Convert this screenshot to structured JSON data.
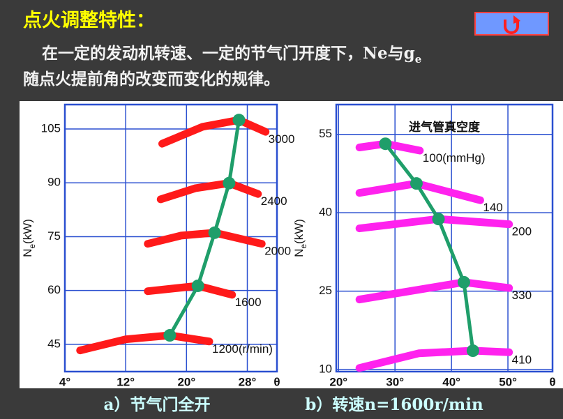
{
  "header": {
    "title": "点火调整特性：",
    "line1": [
      "在一定的发动机转速、一定的节气门开度下，Ne与g",
      "e"
    ],
    "line2": "随点火提前角的改变而变化的规律。"
  },
  "chart_data": [
    {
      "type": "line",
      "y_label": {
        "main": "N",
        "sub": "e",
        "unit": "(kW)"
      },
      "x_label": "θ",
      "xlim": [
        4,
        31.9
      ],
      "ylim": [
        37.4,
        111.8
      ],
      "xticks": [
        {
          "value": 4,
          "label": "4°"
        },
        {
          "value": 12,
          "label": "12°"
        },
        {
          "value": 20,
          "label": "20°"
        },
        {
          "value": 28,
          "label": "28°"
        }
      ],
      "yticks": [
        45,
        60,
        75,
        90,
        105
      ],
      "grid": true,
      "series": [
        {
          "name": "3000",
          "color": "#ff1a1a",
          "x": [
            16.8,
            22.1,
            26.9,
            30.4
          ],
          "values": [
            100.9,
            105.6,
            107.5,
            104.2
          ]
        },
        {
          "name": "2400",
          "color": "#ff1a1a",
          "x": [
            16.6,
            21.2,
            25.6,
            29.4
          ],
          "values": [
            85.4,
            88.5,
            89.9,
            86.9
          ]
        },
        {
          "name": "2000",
          "color": "#ff1a1a",
          "x": [
            14.9,
            19.3,
            23.7,
            29.9
          ],
          "values": [
            73.0,
            75.3,
            76.1,
            73.0
          ]
        },
        {
          "name": "1600",
          "color": "#ff1a1a",
          "x": [
            14.9,
            21.5,
            26.0
          ],
          "values": [
            59.8,
            61.3,
            58.8
          ]
        },
        {
          "name": "1200(r/min)",
          "color": "#ff1a1a",
          "x": [
            6.0,
            12.0,
            17.8,
            23.0
          ],
          "values": [
            43.3,
            46.4,
            47.5,
            45.8
          ]
        },
        {
          "color": "#1f9e6a",
          "markers": true,
          "x": [
            17.8,
            21.5,
            23.7,
            25.6,
            26.9
          ],
          "values": [
            47.5,
            61.3,
            76.1,
            89.9,
            107.5
          ]
        }
      ]
    },
    {
      "type": "line",
      "y_label": {
        "main": "N",
        "sub": "e",
        "unit": "(kW)"
      },
      "x_label": "θ",
      "legend_title": "进气管真空度",
      "xlim": [
        19.6,
        57.9
      ],
      "ylim": [
        9.6,
        60.7
      ],
      "xticks": [
        {
          "value": 20,
          "label": "20°"
        },
        {
          "value": 30,
          "label": "30°"
        },
        {
          "value": 40,
          "label": "40°"
        },
        {
          "value": 50,
          "label": "50°"
        }
      ],
      "yticks": [
        10,
        25,
        40,
        55
      ],
      "grid": true,
      "series": [
        {
          "name": "100(mmHg)",
          "color": "#ff22ee",
          "x": [
            23.7,
            28.3,
            34.4
          ],
          "values": [
            52.5,
            53.2,
            51.9
          ]
        },
        {
          "name": "140",
          "color": "#ff22ee",
          "x": [
            23.7,
            33.8,
            45.1
          ],
          "values": [
            43.8,
            45.6,
            42.4
          ]
        },
        {
          "name": "200",
          "color": "#ff22ee",
          "x": [
            23.7,
            37.7,
            50.2
          ],
          "values": [
            37.0,
            38.8,
            37.8
          ]
        },
        {
          "name": "330",
          "color": "#ff22ee",
          "x": [
            23.7,
            42.2,
            50.2
          ],
          "values": [
            23.4,
            26.7,
            25.6
          ]
        },
        {
          "name": "410",
          "color": "#ff22ee",
          "x": [
            23.7,
            34.2,
            43.8,
            50.2
          ],
          "values": [
            10.3,
            13.1,
            13.6,
            13.3
          ]
        },
        {
          "color": "#1f9e6a",
          "markers": true,
          "x": [
            28.3,
            33.8,
            37.7,
            42.2,
            43.8
          ],
          "values": [
            53.2,
            45.6,
            38.8,
            26.7,
            13.6
          ]
        }
      ]
    }
  ],
  "captions": [
    "a）节气门全开",
    "b）转速n=1600r/min"
  ]
}
